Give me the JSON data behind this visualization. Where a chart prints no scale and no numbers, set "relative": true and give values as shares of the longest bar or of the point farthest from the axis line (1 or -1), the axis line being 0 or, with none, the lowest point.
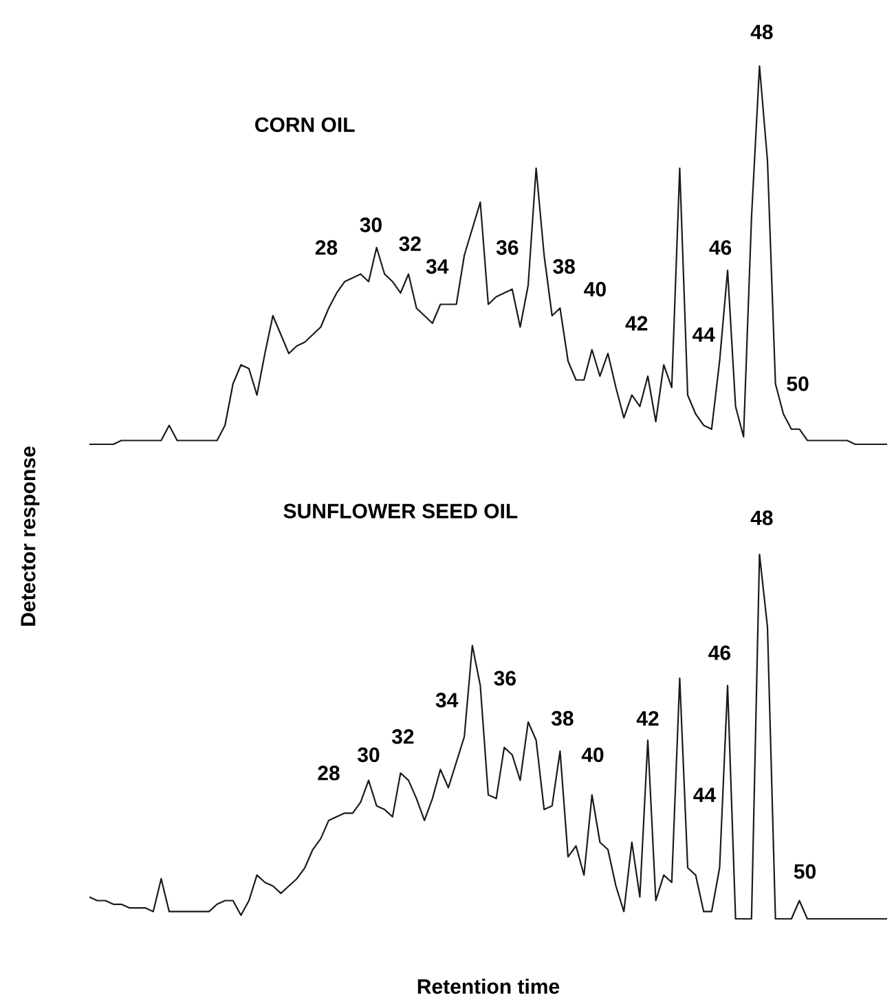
{
  "chart_data": [
    {
      "type": "line",
      "title": "CORN OIL",
      "relative": true,
      "tick_labels": false,
      "categories": [
        null,
        null,
        null,
        null,
        null,
        null,
        null,
        null,
        null,
        null,
        null,
        null,
        null,
        null,
        null,
        null,
        null,
        null,
        null,
        null,
        null,
        null,
        null,
        null,
        null,
        null,
        null,
        null,
        null,
        null,
        null,
        null,
        null,
        null,
        null,
        null,
        null,
        null,
        null,
        null,
        null,
        null,
        null,
        null,
        null,
        null,
        null,
        null,
        null,
        null,
        null,
        null,
        null,
        null,
        null,
        null,
        null,
        null,
        null,
        null,
        null,
        null,
        null,
        null,
        null,
        null,
        null,
        null,
        null,
        null,
        null,
        null,
        null,
        null,
        null,
        null,
        null,
        null,
        null,
        null,
        null,
        null,
        null,
        null,
        null,
        null,
        null,
        null,
        null,
        null,
        null,
        null,
        null,
        null,
        null,
        null,
        null,
        null,
        null,
        null,
        null
      ],
      "series": [
        {
          "color": "#1a1a1a",
          "values": [
            0,
            0,
            0,
            0,
            0.01,
            0.01,
            0.01,
            0.01,
            0.01,
            0.01,
            0.05,
            0.01,
            0.01,
            0.01,
            0.01,
            0.01,
            0.01,
            0.05,
            0.16,
            0.21,
            0.2,
            0.13,
            0.24,
            0.34,
            0.29,
            0.24,
            0.26,
            0.27,
            0.29,
            0.31,
            0.36,
            0.4,
            0.43,
            0.44,
            0.45,
            0.43,
            0.52,
            0.45,
            0.43,
            0.4,
            0.45,
            0.36,
            0.34,
            0.32,
            0.37,
            0.37,
            0.37,
            0.5,
            0.57,
            0.64,
            0.37,
            0.39,
            0.4,
            0.41,
            0.31,
            0.42,
            0.73,
            0.5,
            0.34,
            0.36,
            0.22,
            0.17,
            0.17,
            0.25,
            0.18,
            0.24,
            0.15,
            0.07,
            0.13,
            0.1,
            0.18,
            0.06,
            0.21,
            0.15,
            0.73,
            0.13,
            0.08,
            0.05,
            0.04,
            0.22,
            0.46,
            0.1,
            0.02,
            0.6,
            1,
            0.75,
            0.16,
            0.08,
            0.04,
            0.04,
            0.01,
            0.01,
            0.01,
            0.01,
            0.01,
            0.01,
            0,
            0,
            0,
            0,
            0
          ]
        }
      ],
      "annotations": [
        "28",
        "30",
        "32",
        "34",
        "36",
        "38",
        "40",
        "42",
        "44",
        "46",
        "48",
        "50"
      ]
    },
    {
      "type": "line",
      "title": "SUNFLOWER SEED OIL",
      "xlabel": "Retention time",
      "ylabel": "Detector response",
      "relative": true,
      "tick_labels": false,
      "categories": [
        null,
        null,
        null,
        null,
        null,
        null,
        null,
        null,
        null,
        null,
        null,
        null,
        null,
        null,
        null,
        null,
        null,
        null,
        null,
        null,
        null,
        null,
        null,
        null,
        null,
        null,
        null,
        null,
        null,
        null,
        null,
        null,
        null,
        null,
        null,
        null,
        null,
        null,
        null,
        null,
        null,
        null,
        null,
        null,
        null,
        null,
        null,
        null,
        null,
        null,
        null,
        null,
        null,
        null,
        null,
        null,
        null,
        null,
        null,
        null,
        null,
        null,
        null,
        null,
        null,
        null,
        null,
        null,
        null,
        null,
        null,
        null,
        null,
        null,
        null,
        null,
        null,
        null,
        null,
        null,
        null,
        null,
        null,
        null,
        null,
        null,
        null,
        null,
        null,
        null,
        null,
        null,
        null,
        null,
        null,
        null,
        null,
        null,
        null,
        null,
        null
      ],
      "series": [
        {
          "color": "#1a1a1a",
          "values": [
            0.06,
            0.05,
            0.05,
            0.04,
            0.04,
            0.03,
            0.03,
            0.03,
            0.02,
            0.11,
            0.02,
            0.02,
            0.02,
            0.02,
            0.02,
            0.02,
            0.04,
            0.05,
            0.05,
            0.01,
            0.05,
            0.12,
            0.1,
            0.09,
            0.07,
            0.09,
            0.11,
            0.14,
            0.19,
            0.22,
            0.27,
            0.28,
            0.29,
            0.29,
            0.32,
            0.38,
            0.31,
            0.3,
            0.28,
            0.4,
            0.38,
            0.33,
            0.27,
            0.33,
            0.41,
            0.36,
            0.43,
            0.5,
            0.75,
            0.64,
            0.34,
            0.33,
            0.47,
            0.45,
            0.38,
            0.54,
            0.49,
            0.3,
            0.31,
            0.46,
            0.17,
            0.2,
            0.12,
            0.34,
            0.21,
            0.19,
            0.09,
            0.02,
            0.21,
            0.06,
            0.49,
            0.05,
            0.12,
            0.1,
            0.66,
            0.14,
            0.12,
            0.02,
            0.02,
            0.14,
            0.64,
            0,
            0,
            0,
            1,
            0.8,
            0,
            0,
            0,
            0.05,
            0,
            0,
            0,
            0,
            0,
            0,
            0,
            0,
            0,
            0,
            0
          ]
        }
      ],
      "annotations": [
        "28",
        "30",
        "32",
        "34",
        "36",
        "38",
        "40",
        "42",
        "44",
        "46",
        "48",
        "50"
      ]
    }
  ]
}
